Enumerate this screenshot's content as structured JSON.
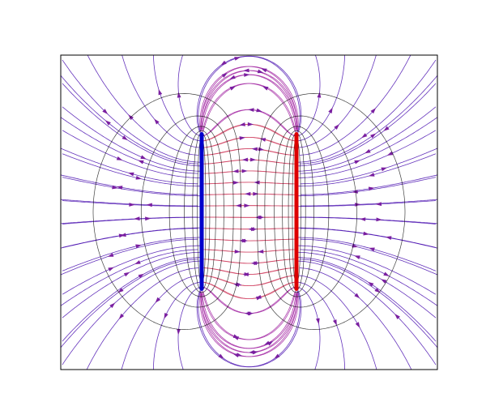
{
  "figure": {
    "background": "#ffffff",
    "frame_color": "#000000"
  },
  "plates": [
    {
      "name": "negative-plate",
      "color": "#0000cc"
    },
    {
      "name": "positive-plate",
      "color": "#dd0000"
    }
  ],
  "field_lines": {
    "colors": {
      "near": "#d04060",
      "mid": "#a020a0",
      "far": "#4a10b0"
    },
    "arrow_color": "#7a1fa0"
  },
  "equipotentials": {
    "color": "#000000"
  }
}
